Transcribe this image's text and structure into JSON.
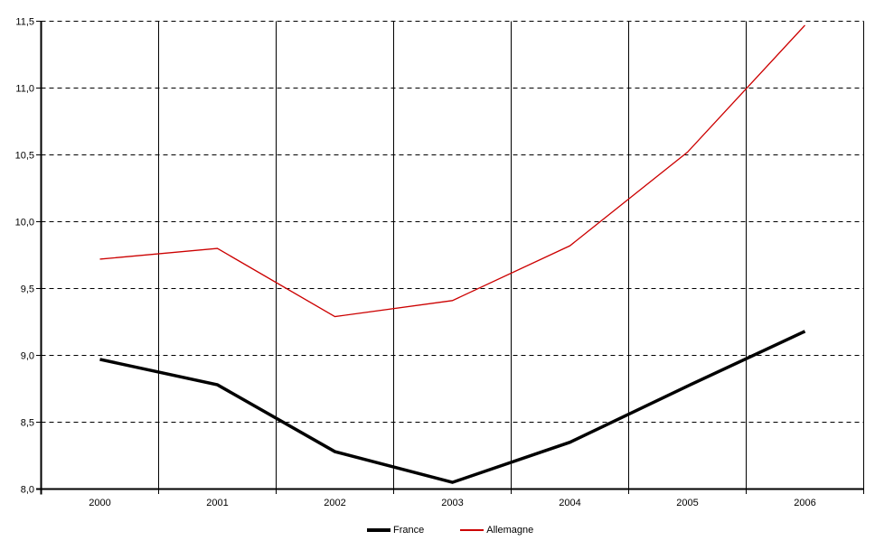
{
  "chart_data": {
    "type": "line",
    "categories": [
      "2000",
      "2001",
      "2002",
      "2003",
      "2004",
      "2005",
      "2006"
    ],
    "series": [
      {
        "name": "France",
        "color": "#000000",
        "stroke_width": 3.5,
        "values": [
          8.97,
          8.78,
          8.28,
          8.05,
          8.35,
          8.77,
          9.18
        ]
      },
      {
        "name": "Allemagne",
        "color": "#cc0000",
        "stroke_width": 1.3,
        "values": [
          9.72,
          9.8,
          9.29,
          9.41,
          9.82,
          10.52,
          11.47
        ]
      }
    ],
    "ylim": [
      8.0,
      11.5
    ],
    "ytick_step": 0.5,
    "ytick_labels": [
      "8,0",
      "8,5",
      "9,0",
      "9,5",
      "10,0",
      "10,5",
      "11,0",
      "11,5"
    ],
    "xlabel": "",
    "ylabel": "",
    "grid": {
      "horizontal": "dashed",
      "vertical": "solid"
    },
    "legend_position": "bottom-center",
    "axis_color": "#000000",
    "background_color": "#ffffff"
  },
  "legend": {
    "items": [
      {
        "label": "France"
      },
      {
        "label": "Allemagne"
      }
    ]
  }
}
